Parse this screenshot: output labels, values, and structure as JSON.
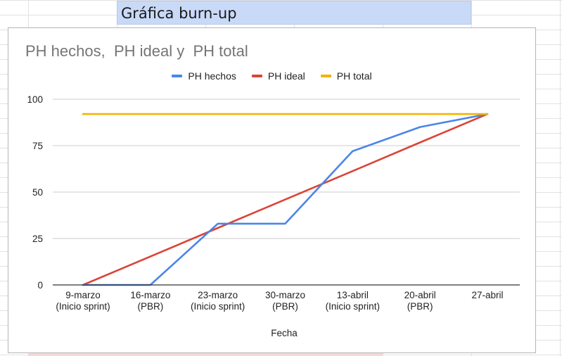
{
  "sheet": {
    "header_cell": "Gráfica burn-up"
  },
  "chart_data": {
    "type": "line",
    "title": "PH hechos,  PH ideal y  PH total",
    "xlabel": "Fecha",
    "ylabel": "",
    "ylim": [
      0,
      100
    ],
    "yticks": [
      0,
      25,
      50,
      75,
      100
    ],
    "grid": true,
    "legend_position": "top",
    "categories": [
      [
        "9-marzo",
        "(Inicio sprint)"
      ],
      [
        "16-marzo",
        "(PBR)"
      ],
      [
        "23-marzo",
        "(Inicio sprint)"
      ],
      [
        "30-marzo",
        "(PBR)"
      ],
      [
        "13-abril",
        "(Inicio sprint)"
      ],
      [
        "20-abril",
        "(PBR)"
      ],
      [
        "27-abril"
      ]
    ],
    "series": [
      {
        "name": "PH hechos",
        "color": "#4a86e8",
        "values": [
          0,
          0,
          33,
          33,
          72,
          85,
          92
        ]
      },
      {
        "name": "PH ideal",
        "color": "#db4437",
        "values": [
          0,
          15.3,
          30.7,
          46,
          61.3,
          76.7,
          92
        ]
      },
      {
        "name": "PH total",
        "color": "#f4b400",
        "values": [
          92,
          92,
          92,
          92,
          92,
          92,
          92
        ]
      }
    ]
  }
}
